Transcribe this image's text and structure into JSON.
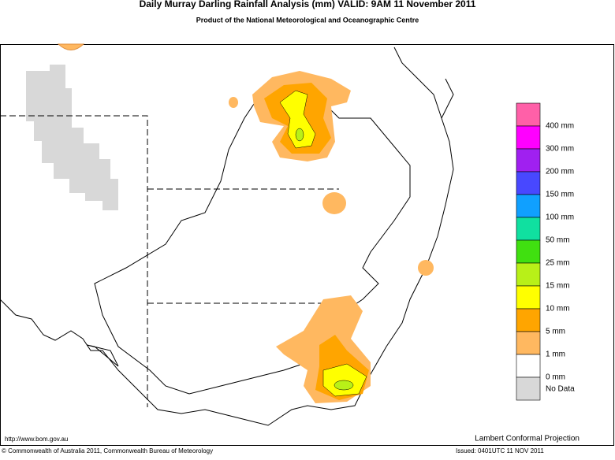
{
  "header": {
    "title": "Daily Murray Darling Rainfall Analysis (mm)  VALID: 9AM 11 November 2011",
    "subtitle": "Product of the National Meteorological and Oceanographic Centre"
  },
  "legend": {
    "colors": [
      "#ff60a8",
      "#ff00ff",
      "#a020f0",
      "#4848ff",
      "#10a0ff",
      "#10e0a0",
      "#40e010",
      "#b8f018",
      "#ffff00",
      "#ffa500",
      "#ffb860",
      "#ffffff",
      "#d8d8d8"
    ],
    "labels": [
      "400 mm",
      "300 mm",
      "200 mm",
      "150 mm",
      "100 mm",
      "50 mm",
      "25 mm",
      "15 mm",
      "10 mm",
      "5 mm",
      "1 mm",
      "0 mm",
      "No Data"
    ]
  },
  "footer": {
    "url": "http://www.bom.gov.au",
    "projection": "Lambert Conformal Projection",
    "copyright": "© Commonwealth of Australia 2011, Commonwealth Bureau of Meteorology",
    "issued": "Issued: 0401UTC 11 NOV 2011"
  }
}
